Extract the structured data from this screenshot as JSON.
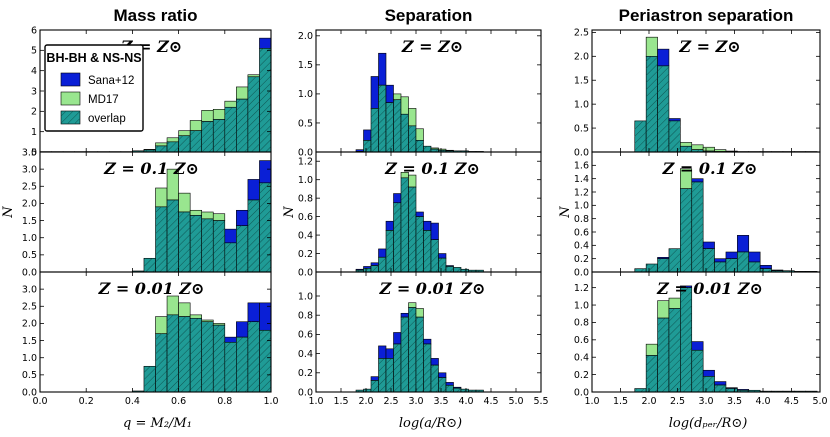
{
  "chart_data": {
    "type": "bar",
    "columns": [
      {
        "title": "Mass ratio",
        "xlabel": "q = M₂/M₁",
        "xlim": [
          0.0,
          1.0
        ],
        "xticks": [
          0.0,
          0.2,
          0.4,
          0.6,
          0.8,
          1.0
        ],
        "xtick_labels": [
          "0.0",
          "0.2",
          "0.4",
          "0.6",
          "0.8",
          "1.0"
        ]
      },
      {
        "title": "Separation",
        "xlabel": "log(a/R⊙)",
        "xlim": [
          1.0,
          5.5
        ],
        "xticks": [
          1.0,
          1.5,
          2.0,
          2.5,
          3.0,
          3.5,
          4.0,
          4.5,
          5.0,
          5.5
        ],
        "xtick_labels": [
          "1.0",
          "1.5",
          "2.0",
          "2.5",
          "3.0",
          "3.5",
          "4.0",
          "4.5",
          "5.0",
          "5.5"
        ]
      },
      {
        "title": "Periastron separation",
        "xlabel": "log(dₚₑᵣ/R⊙)",
        "xlim": [
          1.0,
          5.0
        ],
        "xticks": [
          1.0,
          1.5,
          2.0,
          2.5,
          3.0,
          3.5,
          4.0,
          4.5,
          5.0
        ],
        "xtick_labels": [
          "1.0",
          "1.5",
          "2.0",
          "2.5",
          "3.0",
          "3.5",
          "4.0",
          "4.5",
          "5.0"
        ]
      }
    ],
    "rows": [
      {
        "metallicity": "Z = Z⊙"
      },
      {
        "metallicity": "Z = 0.1 Z⊙"
      },
      {
        "metallicity": "Z = 0.01 Z⊙"
      }
    ],
    "ylabel": "N",
    "legend": {
      "title": "BH-BH & NS-NS",
      "entries": [
        "Sana+12",
        "MD17",
        "overlap"
      ],
      "colors": [
        "#0a1fd6",
        "#99e68f",
        "#1f9b96"
      ]
    },
    "panels": [
      {
        "row": 0,
        "col": 0,
        "ylim": [
          0,
          6
        ],
        "yticks": [
          0,
          1,
          2,
          3,
          4,
          5,
          6
        ],
        "yfmt": "int",
        "x0": 0.0,
        "bw": 0.05,
        "series": [
          {
            "name": "Sana+12",
            "values": [
              0.02,
              0.02,
              0.02,
              0.02,
              0.02,
              0.02,
              0.02,
              0.02,
              0.06,
              0.1,
              0.3,
              0.5,
              0.8,
              1.05,
              1.5,
              1.6,
              2.2,
              2.6,
              3.7,
              5.6
            ]
          },
          {
            "name": "MD17",
            "values": [
              0.02,
              0.02,
              0.02,
              0.02,
              0.02,
              0.02,
              0.02,
              0.02,
              0.06,
              0.13,
              0.45,
              0.7,
              1.05,
              1.55,
              2.05,
              2.1,
              2.5,
              3.2,
              3.8,
              5.1
            ]
          }
        ]
      },
      {
        "row": 0,
        "col": 1,
        "ylim": [
          0,
          2.1
        ],
        "yticks": [
          0,
          0.5,
          1.0,
          1.5,
          2.0
        ],
        "yfmt": "d1",
        "x0": 1.8,
        "bw": 0.15,
        "series": [
          {
            "name": "Sana+12",
            "values": [
              0.04,
              0.38,
              1.3,
              1.7,
              1.15,
              0.9,
              0.65,
              0.45,
              0.2,
              0.1,
              0.05,
              0.03,
              0.02,
              0.02,
              0.02,
              0.01,
              0.01
            ]
          },
          {
            "name": "MD17",
            "values": [
              0.01,
              0.2,
              0.75,
              1.15,
              0.85,
              1.0,
              0.95,
              0.75,
              0.4,
              0.1,
              0.07,
              0.05,
              0.03,
              0.02,
              0.02,
              0.01,
              0.01
            ]
          }
        ]
      },
      {
        "row": 0,
        "col": 2,
        "ylim": [
          0,
          2.55
        ],
        "yticks": [
          0,
          0.5,
          1.0,
          1.5,
          2.0,
          2.5
        ],
        "yfmt": "d1",
        "x0": 1.75,
        "bw": 0.2,
        "series": [
          {
            "name": "Sana+12",
            "values": [
              0.65,
              2.0,
              2.15,
              0.7,
              0.12,
              0.05,
              0.02,
              0.01,
              0.01,
              0.01,
              0.01,
              0.01,
              0.01,
              0.01,
              0.01,
              0.01
            ]
          },
          {
            "name": "MD17",
            "values": [
              0.65,
              2.4,
              1.8,
              0.65,
              0.2,
              0.15,
              0.1,
              0.05,
              0.02,
              0.01,
              0.01,
              0.01,
              0.01,
              0.01,
              0.01,
              0.01
            ]
          }
        ]
      },
      {
        "row": 1,
        "col": 0,
        "ylim": [
          0,
          3.5
        ],
        "yticks": [
          0,
          0.5,
          1.0,
          1.5,
          2.0,
          2.5,
          3.0,
          3.5
        ],
        "yfmt": "d1",
        "x0": 0.0,
        "bw": 0.05,
        "series": [
          {
            "name": "Sana+12",
            "values": [
              0,
              0,
              0,
              0,
              0,
              0,
              0,
              0,
              0.03,
              0.4,
              1.9,
              2.1,
              1.75,
              1.65,
              1.55,
              1.5,
              1.25,
              1.8,
              2.7,
              3.25
            ]
          },
          {
            "name": "MD17",
            "values": [
              0,
              0,
              0,
              0,
              0,
              0,
              0,
              0,
              0.03,
              0.4,
              2.45,
              3.0,
              2.3,
              1.8,
              1.75,
              1.7,
              0.85,
              1.35,
              2.1,
              2.6
            ]
          }
        ]
      },
      {
        "row": 1,
        "col": 1,
        "ylim": [
          0,
          1.3
        ],
        "yticks": [
          0,
          0.2,
          0.4,
          0.6,
          0.8,
          1.0,
          1.2
        ],
        "yfmt": "d1",
        "x0": 1.8,
        "bw": 0.15,
        "series": [
          {
            "name": "Sana+12",
            "values": [
              0.03,
              0.06,
              0.1,
              0.25,
              0.55,
              0.85,
              1.02,
              0.92,
              0.65,
              0.55,
              0.53,
              0.2,
              0.07,
              0.05,
              0.03,
              0.02,
              0.02
            ]
          },
          {
            "name": "MD17",
            "values": [
              0.02,
              0.04,
              0.07,
              0.16,
              0.45,
              0.75,
              1.08,
              1.05,
              0.6,
              0.45,
              0.35,
              0.15,
              0.06,
              0.05,
              0.03,
              0.02,
              0.02
            ]
          }
        ]
      },
      {
        "row": 1,
        "col": 2,
        "ylim": [
          0,
          1.8
        ],
        "yticks": [
          0,
          0.2,
          0.4,
          0.6,
          0.8,
          1.0,
          1.2,
          1.4,
          1.6
        ],
        "yfmt": "d1",
        "x0": 1.75,
        "bw": 0.2,
        "series": [
          {
            "name": "Sana+12",
            "values": [
              0.05,
              0.12,
              0.22,
              0.35,
              1.25,
              1.4,
              0.45,
              0.2,
              0.3,
              0.55,
              0.3,
              0.1,
              0.03,
              0.02,
              0.01,
              0.01
            ]
          },
          {
            "name": "MD17",
            "values": [
              0.05,
              0.12,
              0.2,
              0.35,
              1.55,
              1.35,
              0.35,
              0.15,
              0.2,
              0.3,
              0.15,
              0.05,
              0.02,
              0.02,
              0.01,
              0.01
            ]
          }
        ]
      },
      {
        "row": 2,
        "col": 0,
        "ylim": [
          0,
          3.5
        ],
        "yticks": [
          0,
          0.5,
          1.0,
          1.5,
          2.0,
          2.5,
          3.0
        ],
        "yfmt": "d1",
        "x0": 0.0,
        "bw": 0.05,
        "series": [
          {
            "name": "Sana+12",
            "values": [
              0,
              0,
              0,
              0,
              0,
              0,
              0,
              0,
              0.03,
              0.75,
              1.7,
              2.25,
              2.2,
              2.15,
              2.05,
              1.95,
              1.6,
              2.05,
              2.6,
              2.6
            ]
          },
          {
            "name": "MD17",
            "values": [
              0,
              0,
              0,
              0,
              0,
              0,
              0,
              0,
              0.03,
              0.75,
              2.2,
              2.8,
              2.6,
              2.25,
              2.1,
              2.0,
              1.45,
              1.6,
              2.05,
              1.8
            ]
          }
        ]
      },
      {
        "row": 2,
        "col": 1,
        "ylim": [
          0,
          1.25
        ],
        "yticks": [
          0,
          0.2,
          0.4,
          0.6,
          0.8,
          1.0
        ],
        "yfmt": "d1",
        "x0": 1.8,
        "bw": 0.15,
        "series": [
          {
            "name": "Sana+12",
            "values": [
              0.02,
              0.03,
              0.16,
              0.48,
              0.45,
              0.62,
              0.82,
              0.88,
              0.78,
              0.55,
              0.35,
              0.2,
              0.1,
              0.05,
              0.03,
              0.02,
              0.02
            ]
          },
          {
            "name": "MD17",
            "values": [
              0.02,
              0.03,
              0.12,
              0.35,
              0.35,
              0.5,
              0.78,
              0.93,
              0.87,
              0.5,
              0.28,
              0.15,
              0.07,
              0.04,
              0.03,
              0.02,
              0.02
            ]
          }
        ]
      },
      {
        "row": 2,
        "col": 2,
        "ylim": [
          0,
          1.38
        ],
        "yticks": [
          0,
          0.2,
          0.4,
          0.6,
          0.8,
          1.0,
          1.2
        ],
        "yfmt": "d1",
        "x0": 1.75,
        "bw": 0.2,
        "series": [
          {
            "name": "Sana+12",
            "values": [
              0.04,
              0.42,
              0.85,
              0.96,
              1.22,
              0.58,
              0.25,
              0.12,
              0.05,
              0.03,
              0.02,
              0.01,
              0.01,
              0.01,
              0.01,
              0.01
            ]
          },
          {
            "name": "MD17",
            "values": [
              0.04,
              0.55,
              1.05,
              1.08,
              1.2,
              0.48,
              0.18,
              0.08,
              0.04,
              0.02,
              0.02,
              0.01,
              0.01,
              0.01,
              0.01,
              0.01
            ]
          }
        ]
      }
    ]
  }
}
